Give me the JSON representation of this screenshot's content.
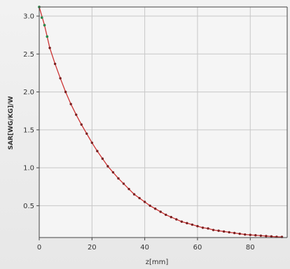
{
  "chart_data": {
    "type": "line",
    "title": "",
    "xlabel": "z[mm]",
    "ylabel": "SAR[WG/KG]/W",
    "xlim": [
      0,
      94
    ],
    "ylim": [
      0.08,
      3.12
    ],
    "xticks": [
      0,
      20,
      40,
      60,
      80
    ],
    "yticks": [
      0.5,
      1.0,
      1.5,
      2.0,
      2.5,
      3.0
    ],
    "xtick_labels": [
      "0",
      "20",
      "40",
      "60",
      "80"
    ],
    "ytick_labels": [
      "0.5",
      "1.0",
      "1.5",
      "2.0",
      "2.5",
      "3.0"
    ],
    "grid": true,
    "legend": "none",
    "series": [
      {
        "color": "#cc3333",
        "x": [
          0,
          2,
          4,
          6,
          8,
          10,
          12,
          14,
          16,
          18,
          20,
          22,
          24,
          26,
          28,
          30,
          32,
          34,
          36,
          38,
          40,
          42,
          44,
          46,
          48,
          50,
          52,
          54,
          56,
          58,
          60,
          62,
          64,
          66,
          68,
          70,
          72,
          74,
          76,
          78,
          80,
          82,
          84,
          86,
          88,
          90,
          92
        ],
        "y": [
          3.12,
          2.88,
          2.58,
          2.37,
          2.18,
          2.0,
          1.84,
          1.7,
          1.57,
          1.45,
          1.33,
          1.22,
          1.12,
          1.02,
          0.94,
          0.86,
          0.79,
          0.72,
          0.65,
          0.6,
          0.55,
          0.5,
          0.46,
          0.42,
          0.38,
          0.35,
          0.32,
          0.29,
          0.27,
          0.25,
          0.23,
          0.21,
          0.2,
          0.18,
          0.17,
          0.16,
          0.15,
          0.14,
          0.13,
          0.12,
          0.115,
          0.11,
          0.105,
          0.1,
          0.095,
          0.09,
          0.088
        ]
      }
    ],
    "highlight_points": {
      "color": "#2a8a4a",
      "x": [
        0,
        1,
        2,
        3
      ],
      "y": [
        3.12,
        2.98,
        2.88,
        2.73
      ]
    }
  }
}
